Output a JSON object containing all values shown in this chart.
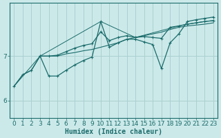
{
  "xlabel": "Humidex (Indice chaleur)",
  "bg_color": "#cce9e9",
  "grid_color": "#aad0d0",
  "line_color": "#1a6b6b",
  "xlim": [
    -0.5,
    23.5
  ],
  "ylim": [
    5.6,
    8.2
  ],
  "yticks": [
    6,
    7
  ],
  "xticks": [
    0,
    1,
    2,
    3,
    4,
    5,
    6,
    7,
    8,
    9,
    10,
    11,
    12,
    13,
    14,
    15,
    16,
    17,
    18,
    19,
    20,
    21,
    22,
    23
  ],
  "line1_x": [
    0,
    1,
    2,
    3,
    4,
    5,
    6,
    7,
    8,
    9,
    10,
    11,
    12,
    13,
    14,
    15,
    16,
    17,
    18,
    19,
    20,
    21,
    22,
    23
  ],
  "line1_y": [
    6.32,
    6.58,
    6.68,
    7.0,
    7.0,
    7.0,
    7.05,
    7.08,
    7.12,
    7.15,
    7.2,
    7.25,
    7.3,
    7.38,
    7.42,
    7.46,
    7.5,
    7.54,
    7.6,
    7.65,
    7.68,
    7.7,
    7.72,
    7.75
  ],
  "line2_x": [
    0,
    1,
    2,
    3,
    4,
    5,
    6,
    7,
    8,
    9,
    10,
    11,
    12,
    13,
    14,
    15,
    16,
    17,
    18,
    19,
    20,
    21,
    22,
    23
  ],
  "line2_y": [
    6.32,
    6.58,
    6.68,
    7.0,
    7.0,
    7.02,
    7.1,
    7.18,
    7.24,
    7.28,
    7.55,
    7.35,
    7.42,
    7.46,
    7.42,
    7.44,
    7.42,
    7.4,
    7.65,
    7.68,
    7.72,
    7.75,
    7.78,
    7.8
  ],
  "line3_x": [
    3,
    4,
    5,
    6,
    7,
    8,
    9,
    10,
    11,
    12,
    13,
    14,
    15,
    16,
    17,
    18,
    19,
    20,
    21,
    22,
    23
  ],
  "line3_y": [
    7.0,
    6.55,
    6.55,
    6.68,
    6.8,
    6.9,
    6.98,
    7.78,
    7.2,
    7.3,
    7.38,
    7.38,
    7.32,
    7.26,
    6.72,
    7.3,
    7.5,
    7.78,
    7.82,
    7.85,
    7.88
  ],
  "line4_x": [
    0,
    3,
    10,
    14,
    19,
    20,
    21,
    22,
    23
  ],
  "line4_y": [
    6.32,
    7.0,
    7.78,
    7.42,
    7.68,
    7.72,
    7.75,
    7.78,
    7.8
  ]
}
